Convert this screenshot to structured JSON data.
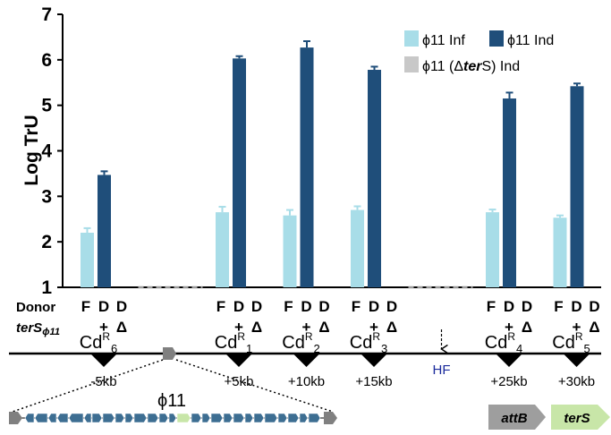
{
  "chart_data": {
    "type": "bar",
    "ylabel": "Log TrU",
    "ylim": [
      1,
      7
    ],
    "yticks": [
      "1",
      "2",
      "3",
      "4",
      "5",
      "6",
      "7"
    ],
    "series": [
      {
        "name": "ϕ11 Inf",
        "color": "#a8dde8"
      },
      {
        "name": "ϕ11 Ind",
        "color": "#1f4e7a"
      },
      {
        "name": "ϕ11 (Δ",
        "name_italic": "ter",
        "name_end": "S) Ind",
        "color": "#c8c8c8"
      }
    ],
    "groups": [
      {
        "site": "Cd",
        "sup": "R",
        "sub": "6",
        "position": "-5kb",
        "inf": 2.2,
        "inf_err": 0.1,
        "ind": 3.47,
        "ind_err": 0.08,
        "empty": false
      },
      {
        "site": "",
        "position": "",
        "empty": true
      },
      {
        "site": "Cd",
        "sup": "R",
        "sub": "1",
        "position": "+5kb",
        "inf": 2.65,
        "inf_err": 0.12,
        "ind": 6.03,
        "ind_err": 0.05,
        "empty": false
      },
      {
        "site": "Cd",
        "sup": "R",
        "sub": "2",
        "position": "+10kb",
        "inf": 2.58,
        "inf_err": 0.12,
        "ind": 6.27,
        "ind_err": 0.14,
        "empty": false
      },
      {
        "site": "Cd",
        "sup": "R",
        "sub": "3",
        "position": "+15kb",
        "inf": 2.7,
        "inf_err": 0.08,
        "ind": 5.78,
        "ind_err": 0.07,
        "empty": false
      },
      {
        "site": "",
        "position": "HF",
        "empty": true
      },
      {
        "site": "Cd",
        "sup": "R",
        "sub": "4",
        "position": "+25kb",
        "inf": 2.65,
        "inf_err": 0.06,
        "ind": 5.15,
        "ind_err": 0.13,
        "empty": false
      },
      {
        "site": "Cd",
        "sup": "R",
        "sub": "5",
        "position": "+30kb",
        "inf": 2.53,
        "inf_err": 0.05,
        "ind": 5.42,
        "ind_err": 0.06,
        "empty": false
      }
    ],
    "columns": [
      "F",
      "D",
      "D"
    ],
    "subcolumns": [
      "+",
      "Δ"
    ],
    "row_labels": {
      "donor": "Donor",
      "ters_main": "terS",
      "ters_sub": "ϕ11"
    },
    "legend_position": "top-right",
    "grid": false
  },
  "diagram": {
    "prophage_label": "ϕ11",
    "genes": [
      {
        "name": "attB",
        "color": "#9e9e9e"
      },
      {
        "name": "terS",
        "color": "#c8e6a8"
      }
    ]
  }
}
